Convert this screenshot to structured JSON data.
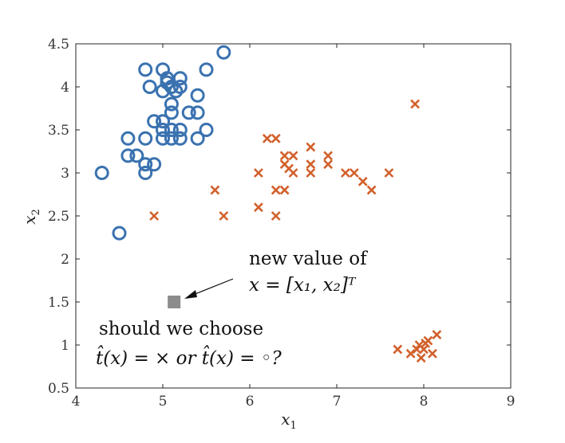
{
  "chart_data": {
    "type": "scatter",
    "xlim": [
      4,
      9
    ],
    "ylim": [
      0.5,
      4.5
    ],
    "xticks": [
      "4",
      "5",
      "6",
      "7",
      "8",
      "9"
    ],
    "yticks": [
      "0.5",
      "1",
      "1.5",
      "2",
      "2.5",
      "3",
      "3.5",
      "4",
      "4.5"
    ],
    "xlabel": "x",
    "xlabel_sub": "1",
    "ylabel": "x",
    "ylabel_sub": "2",
    "grid": false,
    "series": [
      {
        "marker": "circle",
        "color": "#3a72b0",
        "points": [
          [
            4.3,
            3.0
          ],
          [
            4.5,
            2.3
          ],
          [
            4.6,
            3.2
          ],
          [
            4.6,
            3.4
          ],
          [
            4.7,
            3.2
          ],
          [
            4.8,
            3.0
          ],
          [
            4.8,
            3.1
          ],
          [
            4.8,
            3.4
          ],
          [
            4.8,
            4.2
          ],
          [
            4.85,
            4.0
          ],
          [
            4.9,
            3.1
          ],
          [
            4.9,
            3.6
          ],
          [
            5.0,
            3.4
          ],
          [
            5.0,
            3.5
          ],
          [
            5.0,
            3.6
          ],
          [
            5.0,
            4.2
          ],
          [
            5.0,
            3.95
          ],
          [
            5.05,
            4.05
          ],
          [
            5.05,
            4.1
          ],
          [
            5.1,
            3.5
          ],
          [
            5.1,
            3.8
          ],
          [
            5.1,
            3.7
          ],
          [
            5.1,
            4.0
          ],
          [
            5.1,
            3.4
          ],
          [
            5.15,
            3.95
          ],
          [
            5.2,
            4.1
          ],
          [
            5.2,
            3.4
          ],
          [
            5.2,
            3.5
          ],
          [
            5.2,
            4.0
          ],
          [
            5.3,
            3.7
          ],
          [
            5.4,
            3.4
          ],
          [
            5.4,
            3.7
          ],
          [
            5.4,
            3.9
          ],
          [
            5.5,
            4.2
          ],
          [
            5.5,
            3.5
          ],
          [
            5.7,
            4.4
          ]
        ]
      },
      {
        "marker": "cross",
        "color": "#d2612c",
        "points": [
          [
            4.9,
            2.5
          ],
          [
            5.6,
            2.8
          ],
          [
            5.7,
            2.5
          ],
          [
            6.1,
            3.0
          ],
          [
            6.1,
            2.6
          ],
          [
            6.2,
            3.4
          ],
          [
            6.3,
            3.4
          ],
          [
            6.3,
            2.8
          ],
          [
            6.3,
            2.5
          ],
          [
            6.4,
            3.2
          ],
          [
            6.4,
            3.1
          ],
          [
            6.4,
            2.8
          ],
          [
            6.45,
            3.05
          ],
          [
            6.5,
            3.2
          ],
          [
            6.5,
            3.0
          ],
          [
            6.7,
            3.3
          ],
          [
            6.7,
            3.1
          ],
          [
            6.7,
            3.0
          ],
          [
            6.9,
            3.2
          ],
          [
            6.9,
            3.1
          ],
          [
            7.1,
            3.0
          ],
          [
            7.2,
            3.0
          ],
          [
            7.3,
            2.9
          ],
          [
            7.4,
            2.8
          ],
          [
            7.6,
            3.0
          ],
          [
            7.9,
            3.8
          ],
          [
            7.7,
            0.95
          ],
          [
            7.85,
            0.9
          ],
          [
            7.92,
            0.95
          ],
          [
            7.95,
            1.0
          ],
          [
            7.97,
            0.85
          ],
          [
            8.0,
            0.95
          ],
          [
            8.02,
            1.02
          ],
          [
            8.05,
            1.05
          ],
          [
            8.1,
            0.9
          ],
          [
            8.15,
            1.12
          ]
        ]
      },
      {
        "marker": "square",
        "color": "#8c8c8c",
        "points": [
          [
            5.13,
            1.5
          ]
        ]
      }
    ],
    "annotations": {
      "new_value_line1": "new value of",
      "new_value_line2": "x = [x₁, x₂]ᵀ",
      "question_line1": "should we choose",
      "question_line2": "t̂(x) = × or t̂(x) = ◦?"
    }
  }
}
